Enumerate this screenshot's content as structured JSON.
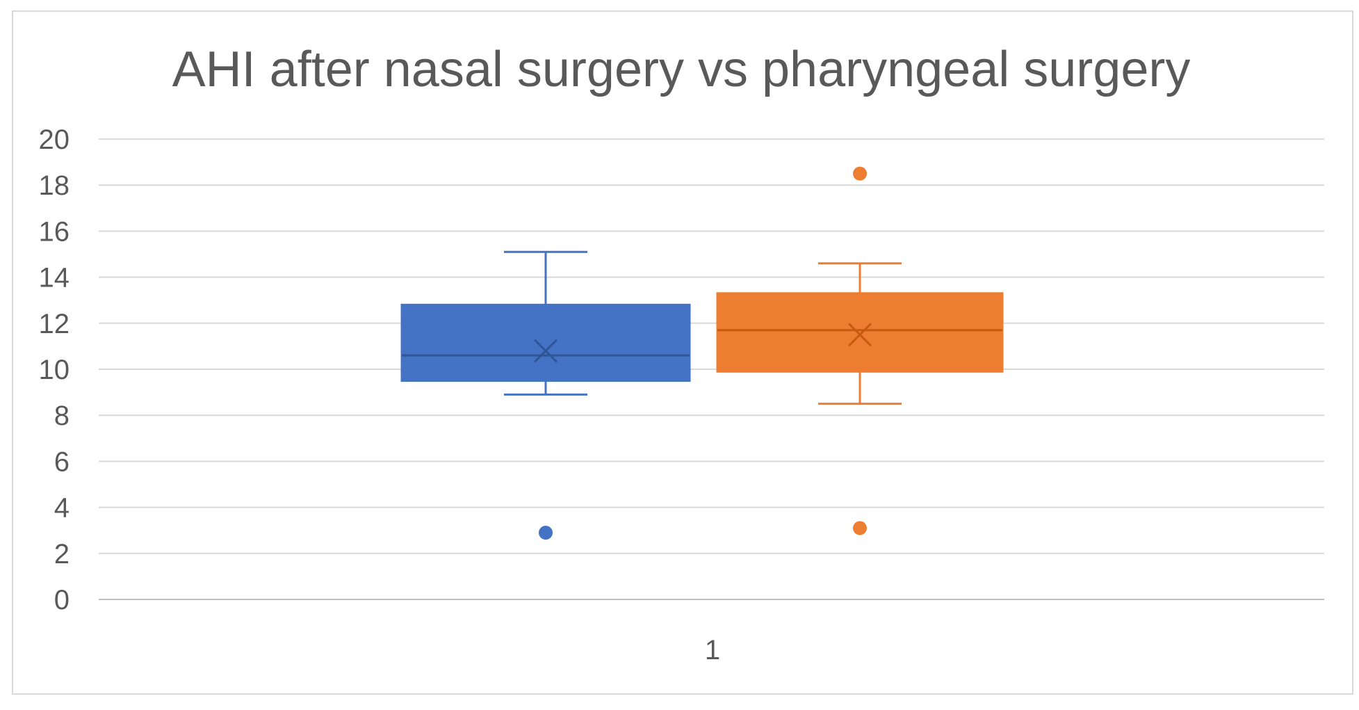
{
  "chart_data": {
    "type": "box",
    "title": "AHI after nasal surgery vs pharyngeal surgery",
    "xlabel": "",
    "ylabel": "",
    "categories": [
      "1"
    ],
    "ylim": [
      0,
      20
    ],
    "yticks": [
      "0",
      "2",
      "4",
      "6",
      "8",
      "10",
      "12",
      "14",
      "16",
      "18",
      "20"
    ],
    "grid": true,
    "legend": "none",
    "series": [
      {
        "color": "#4472c4",
        "min": 8.9,
        "q1": 9.5,
        "median": 10.6,
        "q3": 12.8,
        "max": 15.1,
        "mean": 10.8,
        "outliers": [
          2.9
        ]
      },
      {
        "color": "#ed7d31",
        "min": 8.5,
        "q1": 9.9,
        "median": 11.7,
        "q3": 13.3,
        "max": 14.6,
        "mean": 11.5,
        "outliers": [
          18.5,
          3.1
        ]
      }
    ]
  }
}
